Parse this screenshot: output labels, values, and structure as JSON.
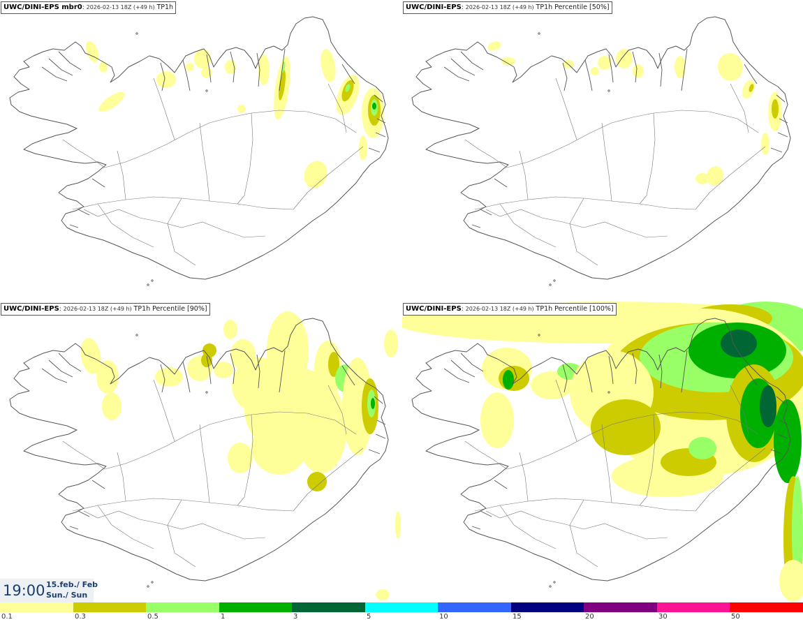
{
  "panels": [
    {
      "id": "tl",
      "source": "UWC/DINI-EPS mbr0",
      "run": "2026-02-13 18Z (+49 h)",
      "param": "TP1h",
      "coverage": "low"
    },
    {
      "id": "tr",
      "source": "UWC/DINI-EPS",
      "run": "2026-02-13 18Z (+49 h)",
      "param": "TP1h Percentile [50%]",
      "coverage": "lowest"
    },
    {
      "id": "bl",
      "source": "UWC/DINI-EPS",
      "run": "2026-02-13 18Z (+49 h)",
      "param": "TP1h Percentile [90%]",
      "coverage": "medium"
    },
    {
      "id": "br",
      "source": "UWC/DINI-EPS",
      "run": "2026-02-13 18Z (+49 h)",
      "param": "TP1h Percentile [100%]",
      "coverage": "high"
    }
  ],
  "valid_time": {
    "time": "19:00",
    "date": "15.feb./ Feb",
    "day": "Sun./ Sun"
  },
  "colorbar": {
    "labels": [
      "0.1",
      "0.3",
      "0.5",
      "1",
      "3",
      "5",
      "10",
      "15",
      "20",
      "30",
      "50"
    ],
    "colors": [
      "#ffff99",
      "#cccc00",
      "#99ff66",
      "#00b000",
      "#006633",
      "#00ffff",
      "#3366ff",
      "#000080",
      "#800080",
      "#ff1493",
      "#ff0000"
    ]
  },
  "map_colors": {
    "coast": "#555555",
    "roads": "#777777"
  }
}
